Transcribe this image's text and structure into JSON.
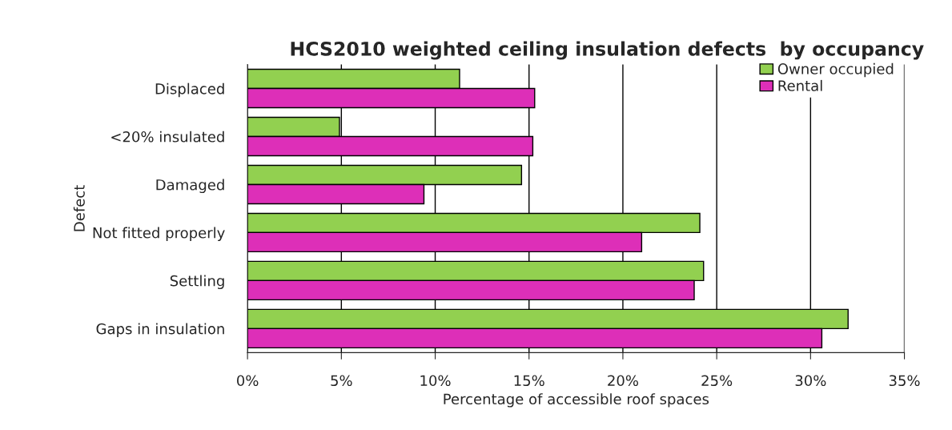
{
  "chart_data": {
    "type": "bar",
    "orientation": "horizontal",
    "title": "HCS2010 weighted ceiling insulation defects  by occupancy",
    "xlabel": "Percentage of accessible roof spaces",
    "ylabel": "Defect",
    "categories": [
      "Displaced",
      "<20% insulated",
      "Damaged",
      "Not fitted properly",
      "Settling",
      "Gaps in insulation"
    ],
    "series": [
      {
        "name": "Owner occupied",
        "color": "#92d050",
        "values": [
          11.3,
          4.9,
          14.6,
          24.1,
          24.3,
          32.0
        ]
      },
      {
        "name": "Rental",
        "color": "#dd2fb8",
        "values": [
          15.3,
          15.2,
          9.4,
          21.0,
          23.8,
          30.6
        ]
      }
    ],
    "xlim": [
      0,
      35
    ],
    "xticks": [
      {
        "value": 0,
        "label": "0%"
      },
      {
        "value": 5,
        "label": "5%"
      },
      {
        "value": 10,
        "label": "10%"
      },
      {
        "value": 15,
        "label": "15%"
      },
      {
        "value": 20,
        "label": "20%"
      },
      {
        "value": 25,
        "label": "25%"
      },
      {
        "value": 30,
        "label": "30%"
      },
      {
        "value": 35,
        "label": "35%"
      }
    ],
    "grid": "x",
    "legend": "top right"
  }
}
